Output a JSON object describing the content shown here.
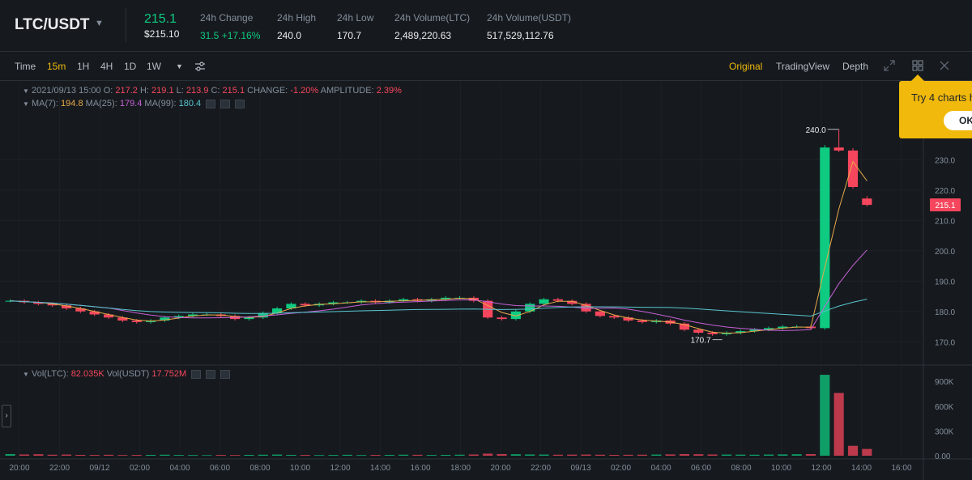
{
  "header": {
    "symbol": "LTC/USDT",
    "last_price": "215.1",
    "last_price_usd": "$215.10",
    "stats": [
      {
        "label": "24h Change",
        "value": "31.5 +17.16%",
        "positive": true
      },
      {
        "label": "24h High",
        "value": "240.0"
      },
      {
        "label": "24h Low",
        "value": "170.7"
      },
      {
        "label": "24h Volume(LTC)",
        "value": "2,489,220.63"
      },
      {
        "label": "24h Volume(USDT)",
        "value": "517,529,112.76"
      }
    ]
  },
  "toolbar": {
    "intervals": [
      "Time",
      "15m",
      "1H",
      "4H",
      "1D",
      "1W"
    ],
    "active_interval": "15m",
    "views": [
      "Original",
      "TradingView",
      "Depth"
    ],
    "active_view": "Original"
  },
  "info": {
    "date": "2021/09/13 15:00",
    "open_label": "O:",
    "open": "217.2",
    "high_label": "H:",
    "high": "219.1",
    "low_label": "L:",
    "low": "213.9",
    "close_label": "C:",
    "close": "215.1",
    "change_label": "CHANGE:",
    "change": "-1.20%",
    "amplitude_label": "AMPLITUDE:",
    "amplitude": "2.39%",
    "ma7_label": "MA(7):",
    "ma7": "194.8",
    "ma25_label": "MA(25):",
    "ma25": "179.4",
    "ma99_label": "MA(99):",
    "ma99": "180.4",
    "vol_ltc_label": "Vol(LTC):",
    "vol_ltc": "82.035K",
    "vol_usdt_label": "Vol(USDT)",
    "vol_usdt": "17.752M"
  },
  "tooltip": {
    "text": "Try 4 charts h",
    "ok": "OK"
  },
  "colors": {
    "up": "#0ecb81",
    "down": "#f6465d",
    "accent": "#f0b90b",
    "ma7": "#e8a84a",
    "ma25": "#c660d6",
    "ma99": "#58c5cf"
  },
  "chart_data": {
    "type": "candlestick",
    "x_ticks": [
      "20:00",
      "22:00",
      "09/12",
      "02:00",
      "04:00",
      "06:00",
      "08:00",
      "10:00",
      "12:00",
      "14:00",
      "16:00",
      "18:00",
      "20:00",
      "22:00",
      "09/13",
      "02:00",
      "04:00",
      "06:00",
      "08:00",
      "10:00",
      "12:00",
      "14:00",
      "16:00"
    ],
    "price_ticks": [
      "230.0",
      "220.0",
      "210.0",
      "200.0",
      "190.0",
      "180.0",
      "170.0"
    ],
    "price_range": [
      165,
      245
    ],
    "volume_ticks": [
      "900K",
      "600K",
      "300K",
      "0.00"
    ],
    "volume_range": [
      0,
      1000000
    ],
    "current_price": "215.1",
    "high_marker": "240.0",
    "low_marker": "170.7",
    "close_path": [
      183.5,
      183.0,
      182.5,
      182.0,
      181.0,
      180.0,
      179.0,
      178.0,
      177.0,
      176.5,
      177.0,
      178.0,
      178.5,
      179.0,
      179.0,
      178.5,
      177.5,
      178.0,
      179.5,
      181.0,
      182.5,
      182.0,
      182.5,
      183.0,
      183.0,
      183.5,
      183.0,
      183.5,
      184.0,
      183.5,
      184.0,
      184.5,
      184.5,
      183.5,
      178.0,
      177.5,
      180.0,
      182.5,
      184.0,
      183.5,
      182.5,
      180.0,
      178.5,
      178.0,
      177.0,
      176.5,
      177.0,
      176.0,
      174.0,
      173.0,
      172.5,
      173.0,
      173.5,
      174.0,
      174.5,
      175.0,
      175.0,
      174.5,
      234.0,
      233.0,
      221.0,
      215.1
    ],
    "volumes": [
      20000,
      15000,
      18000,
      12000,
      14000,
      10000,
      9000,
      11000,
      8000,
      9000,
      10000,
      12000,
      9000,
      8000,
      7000,
      9000,
      8000,
      10000,
      12000,
      14000,
      10000,
      9000,
      8000,
      9000,
      11000,
      8000,
      9000,
      10000,
      12000,
      11000,
      9000,
      10000,
      12000,
      15000,
      25000,
      20000,
      18000,
      15000,
      14000,
      12000,
      13000,
      14000,
      12000,
      10000,
      11000,
      12000,
      14000,
      16000,
      20000,
      18000,
      15000,
      14000,
      13000,
      12000,
      14000,
      16000,
      18000,
      20000,
      980000,
      760000,
      120000,
      82035
    ]
  }
}
